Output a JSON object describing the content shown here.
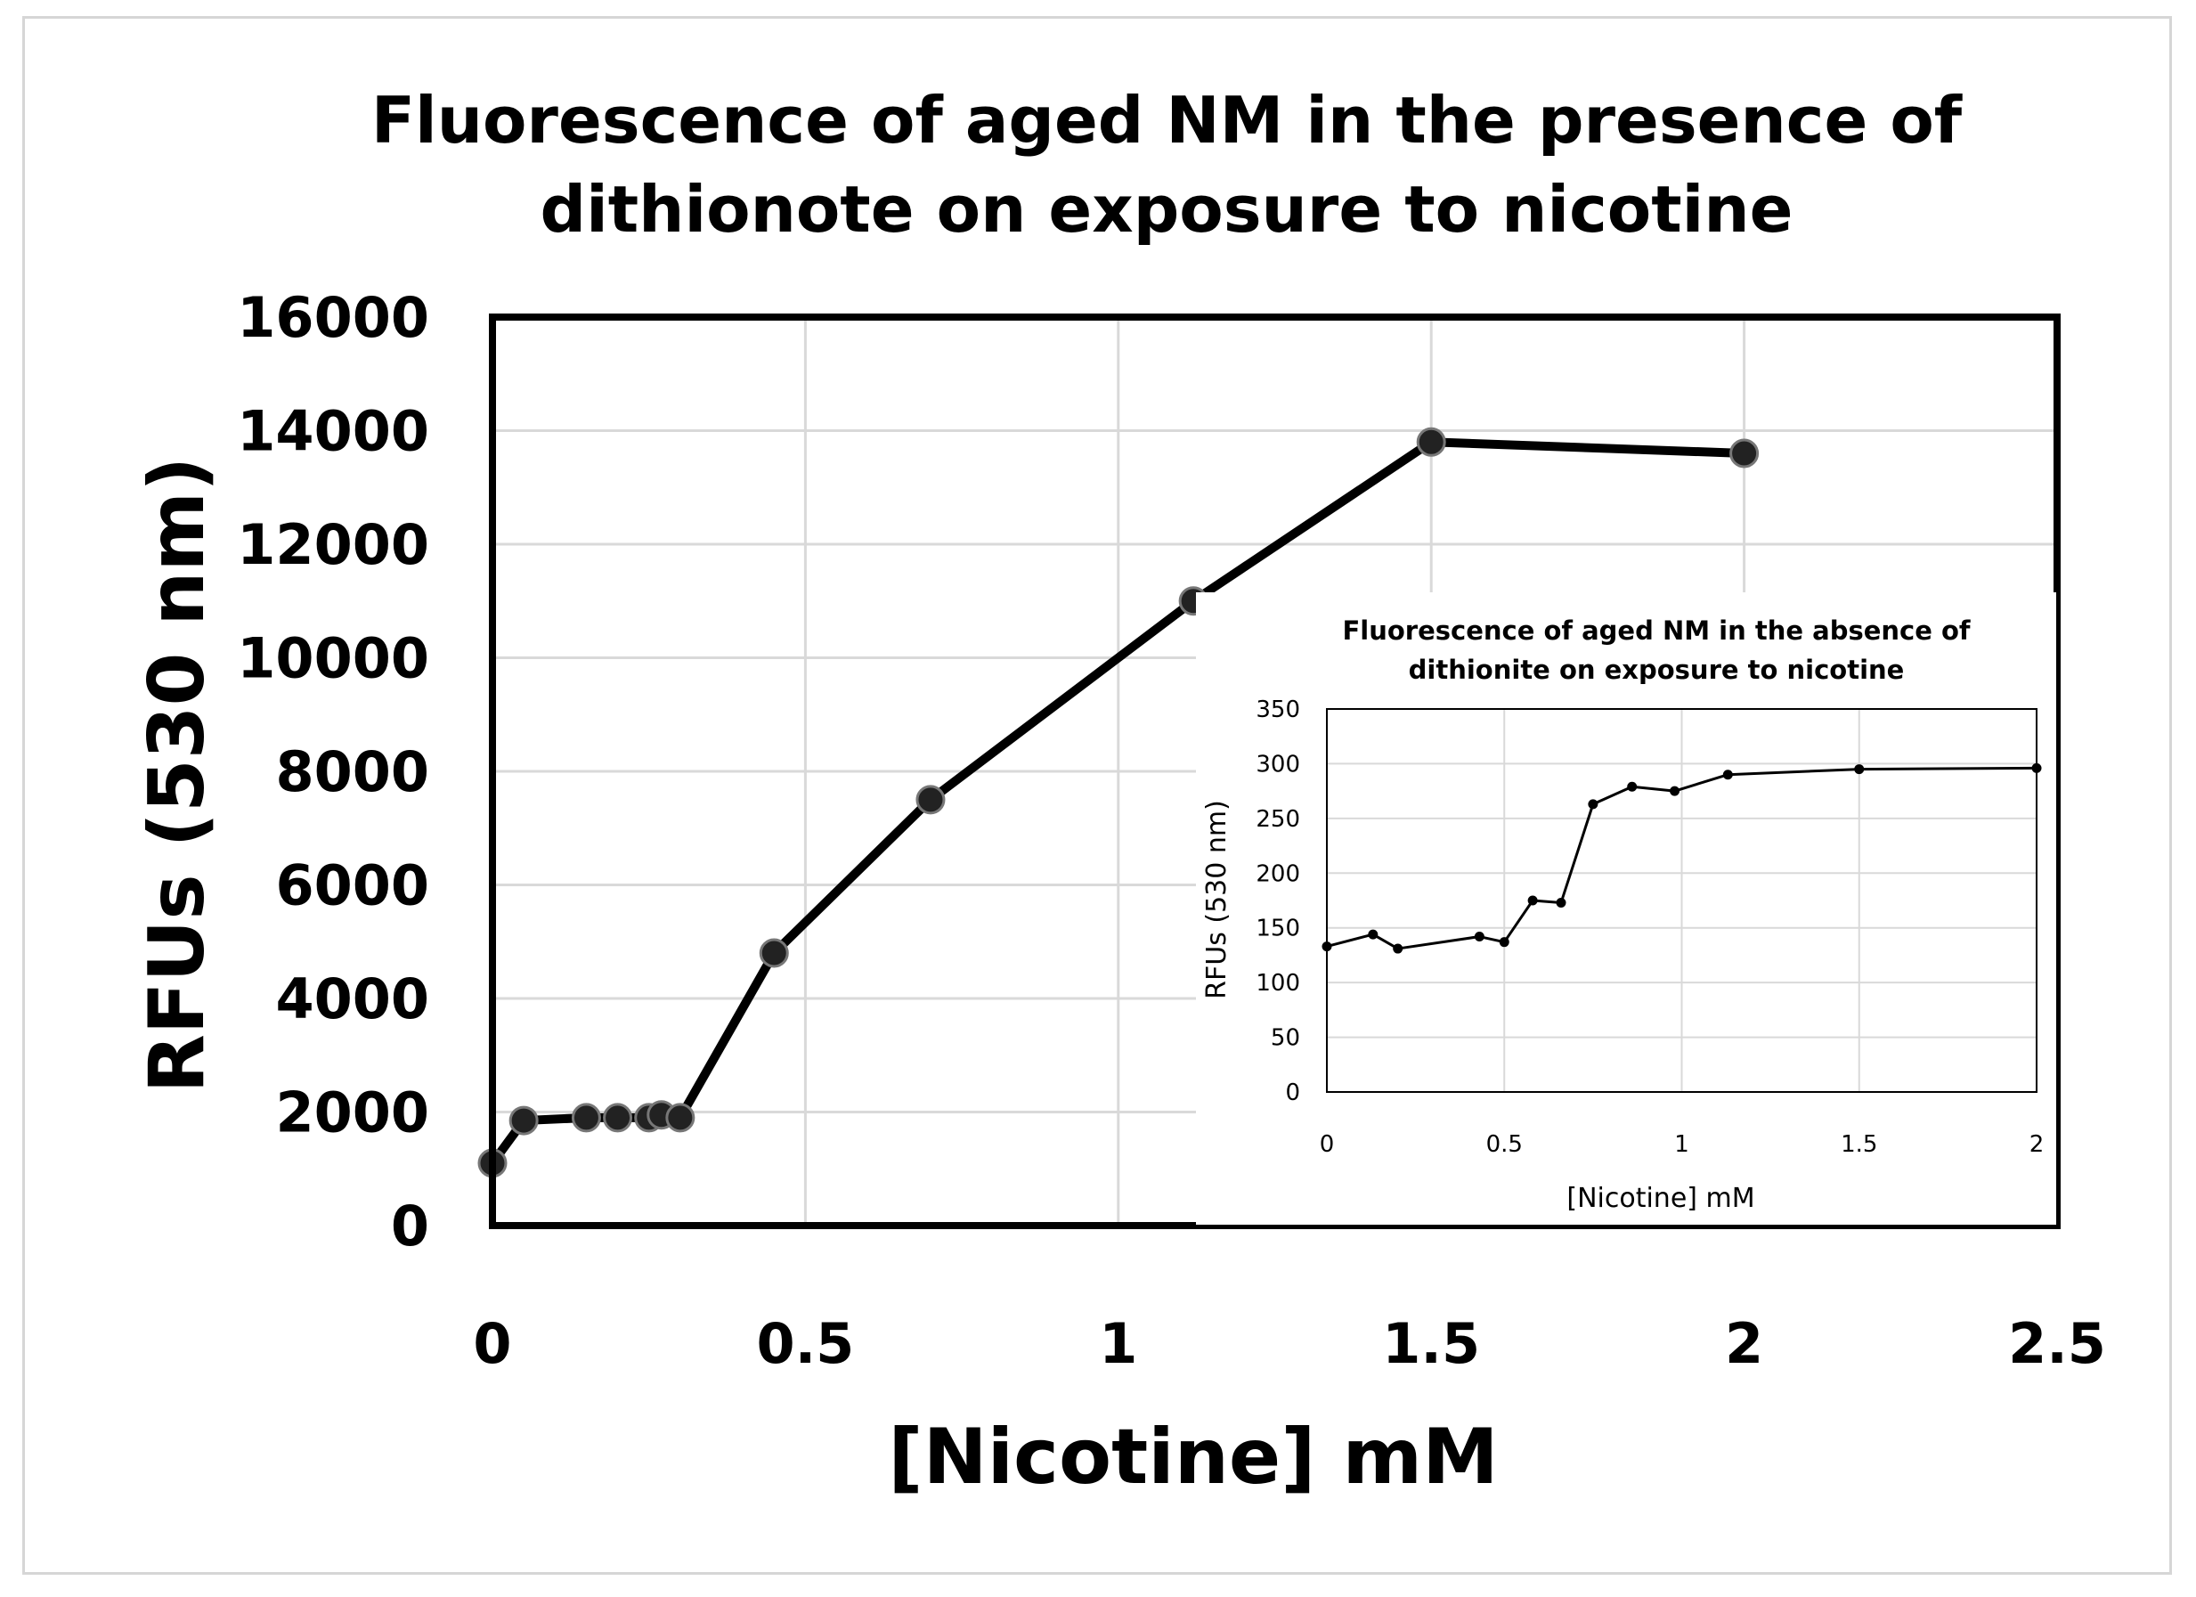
{
  "chart_data": [
    {
      "type": "line",
      "title": [
        "Fluorescence of aged NM in the presence of",
        "dithionote on exposure to nicotine"
      ],
      "xlabel": "[Nicotine] mM",
      "ylabel": "RFUs (530 nm)",
      "xlim": [
        0,
        2.5
      ],
      "ylim": [
        0,
        16000
      ],
      "xticks": [
        "0",
        "0.5",
        "1",
        "1.5",
        "2",
        "2.5"
      ],
      "yticks": [
        "0",
        "2000",
        "4000",
        "6000",
        "8000",
        "10000",
        "12000",
        "14000",
        "16000"
      ],
      "grid": true,
      "series": [
        {
          "x": [
            0,
            0.05,
            0.15,
            0.2,
            0.25,
            0.27,
            0.3,
            0.45,
            0.7,
            1.12,
            1.5,
            2.0
          ],
          "y": [
            1100,
            1850,
            1900,
            1900,
            1900,
            1950,
            1900,
            4800,
            7500,
            11000,
            13800,
            13600
          ]
        }
      ],
      "marker": "circle",
      "line_color": "#000000"
    },
    {
      "type": "line",
      "title": [
        "Fluorescence of aged NM in the absence of",
        "dithionite on exposure to nicotine"
      ],
      "xlabel": "[Nicotine] mM",
      "ylabel": "RFUs (530 nm)",
      "xlim": [
        0,
        2
      ],
      "ylim": [
        0,
        350
      ],
      "xticks": [
        "0",
        "0.5",
        "1",
        "1.5",
        "2"
      ],
      "yticks": [
        "0",
        "50",
        "100",
        "150",
        "200",
        "250",
        "300",
        "350"
      ],
      "grid": true,
      "series": [
        {
          "x": [
            0,
            0.13,
            0.2,
            0.43,
            0.5,
            0.58,
            0.66,
            0.75,
            0.86,
            0.98,
            1.13,
            1.5,
            2.0
          ],
          "y": [
            133,
            144,
            131,
            142,
            137,
            175,
            173,
            263,
            279,
            275,
            290,
            295,
            296
          ]
        }
      ],
      "marker": "circle",
      "line_color": "#000000"
    }
  ]
}
